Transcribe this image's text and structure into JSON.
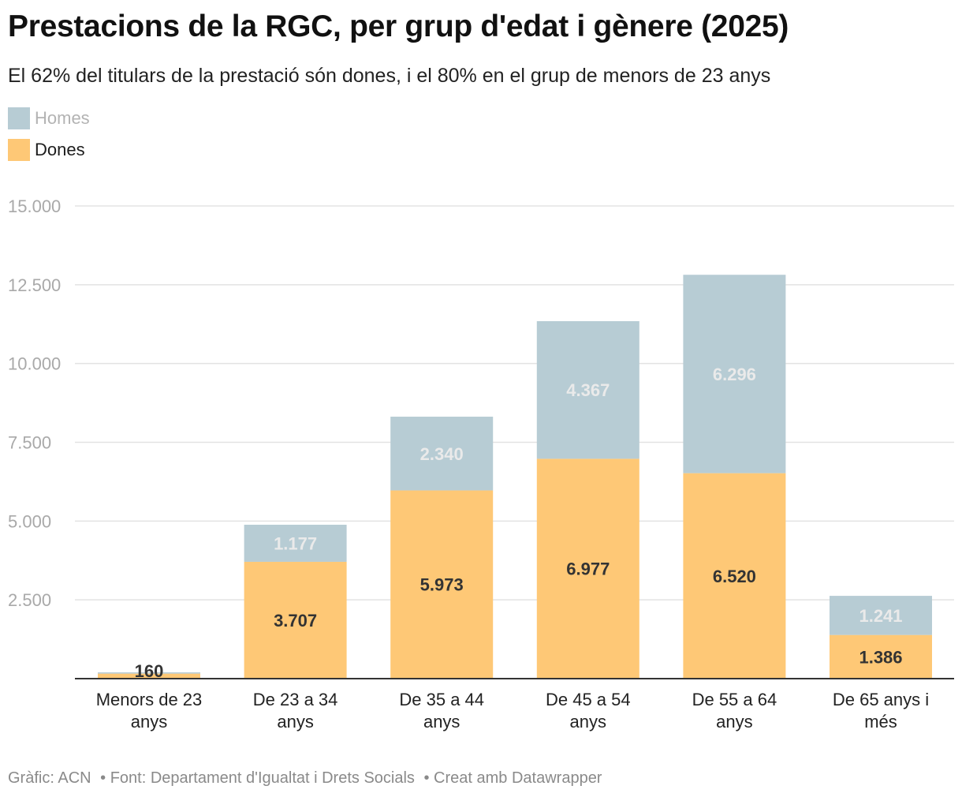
{
  "title": "Prestacions de la RGC, per grup d'edat i gènere (2025)",
  "subtitle": "El 62% del titulars de la prestació són dones, i el 80% en el grup de menors de 23 anys",
  "footer": {
    "credit": "Gràfic: ACN",
    "source": "• Font: Departament d'Igualtat i Drets Socials",
    "tool": "• Creat amb Datawrapper"
  },
  "colors": {
    "homes": "#b7ccd4",
    "dones": "#fec876",
    "homes_legend_text": "#b3b3b3",
    "dones_label": "#333333",
    "homes_label": "#eaeaea",
    "grid": "#e3e3e3",
    "axis_text": "#a9a9a9"
  },
  "chart_data": {
    "type": "bar",
    "stacked": true,
    "categories": [
      [
        "Menors de 23",
        "anys"
      ],
      [
        "De 23 a 34",
        "anys"
      ],
      [
        "De 35 a 44",
        "anys"
      ],
      [
        "De 45 a 54",
        "anys"
      ],
      [
        "De 55 a 64",
        "anys"
      ],
      [
        "De 65 anys i",
        "més"
      ]
    ],
    "series": [
      {
        "name": "Dones",
        "values": [
          160,
          3707,
          5973,
          6977,
          6520,
          1386
        ],
        "labels": [
          "160",
          "3.707",
          "5.973",
          "6.977",
          "6.520",
          "1.386"
        ]
      },
      {
        "name": "Homes",
        "values": [
          40,
          1177,
          2340,
          4367,
          6296,
          1241
        ],
        "labels": [
          "",
          "1.177",
          "2.340",
          "4.367",
          "6.296",
          "1.241"
        ]
      }
    ],
    "ylim": [
      0,
      15000
    ],
    "yticks": [
      2500,
      5000,
      7500,
      10000,
      12500,
      15000
    ],
    "ytick_labels": [
      "2.500",
      "5.000",
      "7.500",
      "10.000",
      "12.500",
      "15.000"
    ],
    "grid": true,
    "legend_position": "top-left"
  }
}
